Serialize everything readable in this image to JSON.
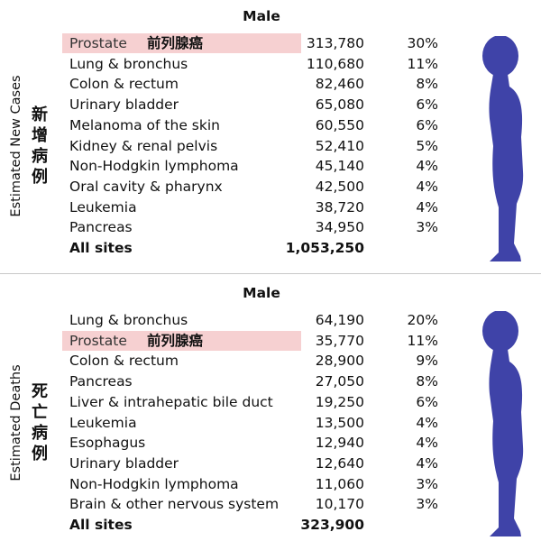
{
  "sections": [
    {
      "side_label": "Estimated New Cases",
      "side_label_zh": "新增病例",
      "header": "Male",
      "rows": [
        {
          "site": "Prostate",
          "site_zh": "前列腺癌",
          "count": "313,780",
          "percent": "30%"
        },
        {
          "site": "Lung & bronchus",
          "count": "110,680",
          "percent": "11%"
        },
        {
          "site": "Colon & rectum",
          "count": "82,460",
          "percent": "8%"
        },
        {
          "site": "Urinary bladder",
          "count": "65,080",
          "percent": "6%"
        },
        {
          "site": "Melanoma of the skin",
          "count": "60,550",
          "percent": "6%"
        },
        {
          "site": "Kidney & renal pelvis",
          "count": "52,410",
          "percent": "5%"
        },
        {
          "site": "Non-Hodgkin lymphoma",
          "count": "45,140",
          "percent": "4%"
        },
        {
          "site": "Oral cavity & pharynx",
          "count": "42,500",
          "percent": "4%"
        },
        {
          "site": "Leukemia",
          "count": "38,720",
          "percent": "4%"
        },
        {
          "site": "Pancreas",
          "count": "34,950",
          "percent": "3%"
        }
      ],
      "total": {
        "site": "All sites",
        "count": "1,053,250"
      }
    },
    {
      "side_label": "Estimated Deaths",
      "side_label_zh": "死亡病例",
      "header": "Male",
      "rows": [
        {
          "site": "Lung & bronchus",
          "count": "64,190",
          "percent": "20%"
        },
        {
          "site": "Prostate",
          "site_zh": "前列腺癌",
          "count": "35,770",
          "percent": "11%"
        },
        {
          "site": "Colon & rectum",
          "count": "28,900",
          "percent": "9%"
        },
        {
          "site": "Pancreas",
          "count": "27,050",
          "percent": "8%"
        },
        {
          "site": "Liver & intrahepatic bile duct",
          "count": "19,250",
          "percent": "6%"
        },
        {
          "site": "Leukemia",
          "count": "13,500",
          "percent": "4%"
        },
        {
          "site": "Esophagus",
          "count": "12,940",
          "percent": "4%"
        },
        {
          "site": "Urinary bladder",
          "count": "12,640",
          "percent": "4%"
        },
        {
          "site": "Non-Hodgkin lymphoma",
          "count": "11,060",
          "percent": "3%"
        },
        {
          "site": "Brain & other nervous system",
          "count": "10,170",
          "percent": "3%"
        }
      ],
      "total": {
        "site": "All sites",
        "count": "323,900"
      }
    }
  ]
}
